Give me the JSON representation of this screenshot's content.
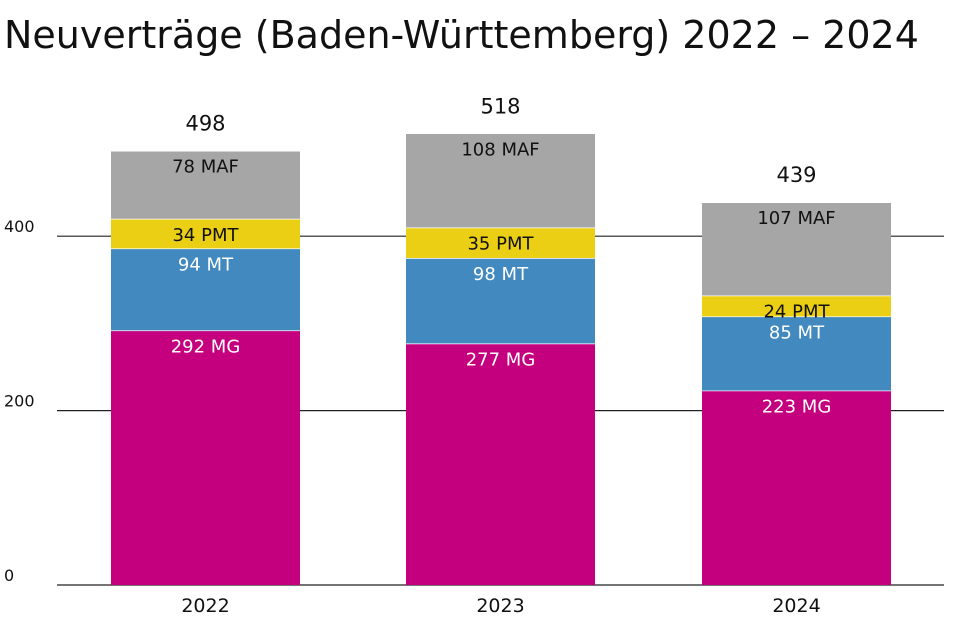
{
  "chart_data": {
    "type": "bar",
    "stacked": true,
    "title": "Neuverträge (Baden-Württemberg) 2022 – 2024",
    "xlabel": "",
    "ylabel": "",
    "categories": [
      "2022",
      "2023",
      "2024"
    ],
    "ylim": [
      0,
      530
    ],
    "yticks": [
      0,
      200,
      400
    ],
    "ytick_labels": [
      "0",
      "200",
      "400"
    ],
    "grid": true,
    "totals": [
      498,
      518,
      439
    ],
    "total_labels": [
      "498",
      "518",
      "439"
    ],
    "series": [
      {
        "name": "MG",
        "values": [
          292,
          277,
          223
        ],
        "labels": [
          "292 MG",
          "277 MG",
          "223 MG"
        ],
        "color": "#C5007F",
        "label_color": "#ffffff"
      },
      {
        "name": "MT",
        "values": [
          94,
          98,
          85
        ],
        "labels": [
          "94 MT",
          "98 MT",
          "85 MT"
        ],
        "color": "#4189BF",
        "label_color": "#ffffff"
      },
      {
        "name": "PMT",
        "values": [
          34,
          35,
          24
        ],
        "labels": [
          "34 PMT",
          "35 PMT",
          "24 PMT"
        ],
        "color": "#EBCF14",
        "label_color": "#111111"
      },
      {
        "name": "MAF",
        "values": [
          78,
          108,
          107
        ],
        "labels": [
          "78 MAF",
          "108 MAF",
          "107 MAF"
        ],
        "color": "#A6A6A6",
        "label_color": "#111111"
      }
    ]
  }
}
